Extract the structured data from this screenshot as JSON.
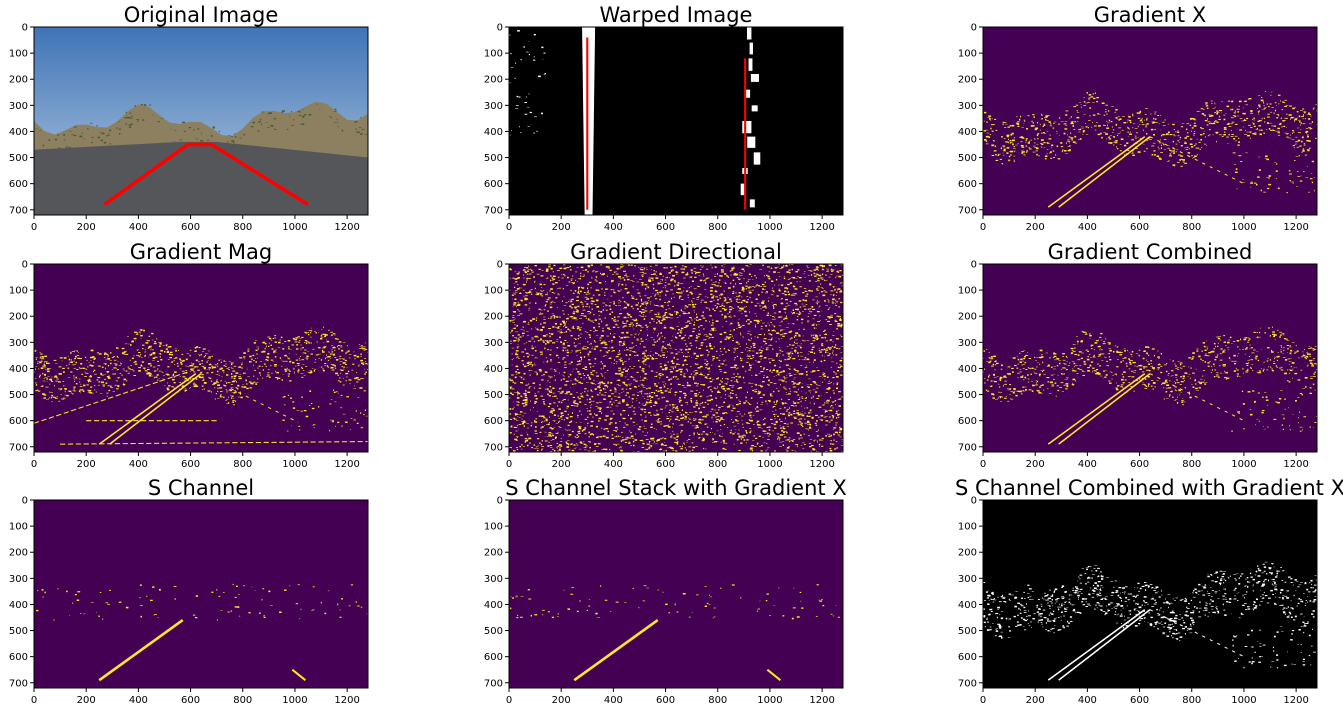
{
  "figure": {
    "colors": {
      "viridis_dark": "#440154",
      "viridis_yellow": "#fde725",
      "binary_black": "#000000",
      "binary_white": "#ffffff",
      "lane_line": "#ff0000",
      "sky_top": "#3f74b8",
      "sky_bottom": "#b9cde0",
      "hills": "#8d8060",
      "road": "#55565a"
    }
  },
  "chart_data": [
    {
      "type": "image",
      "title": "Original Image",
      "colormap": "rgb",
      "content": "photo-with-lane-polygon",
      "xlim": [
        0,
        1280
      ],
      "ylim": [
        720,
        0
      ],
      "xticks": [
        0,
        200,
        400,
        600,
        800,
        1000,
        1200
      ],
      "yticks": [
        0,
        100,
        200,
        300,
        400,
        500,
        600,
        700
      ],
      "lane_polygon": [
        [
          270,
          680
        ],
        [
          590,
          450
        ],
        [
          680,
          450
        ],
        [
          1050,
          680
        ]
      ]
    },
    {
      "type": "image",
      "title": "Warped Image",
      "colormap": "binary",
      "content": "warped",
      "xlim": [
        0,
        1280
      ],
      "ylim": [
        720,
        0
      ],
      "xticks": [
        0,
        200,
        400,
        600,
        800,
        1000,
        1200
      ],
      "yticks": [
        0,
        100,
        200,
        300,
        400,
        500,
        600,
        700
      ],
      "fit_lines": [
        [
          [
            300,
            40
          ],
          [
            300,
            700
          ]
        ],
        [
          [
            905,
            120
          ],
          [
            905,
            700
          ]
        ]
      ]
    },
    {
      "type": "image",
      "title": "Gradient X",
      "colormap": "viridis-binary",
      "content": "gradx",
      "xlim": [
        0,
        1280
      ],
      "ylim": [
        720,
        0
      ],
      "xticks": [
        0,
        200,
        400,
        600,
        800,
        1000,
        1200
      ],
      "yticks": [
        0,
        100,
        200,
        300,
        400,
        500,
        600,
        700
      ]
    },
    {
      "type": "image",
      "title": "Gradient Mag",
      "colormap": "viridis-binary",
      "content": "mag",
      "xlim": [
        0,
        1280
      ],
      "ylim": [
        720,
        0
      ],
      "xticks": [
        0,
        200,
        400,
        600,
        800,
        1000,
        1200
      ],
      "yticks": [
        0,
        100,
        200,
        300,
        400,
        500,
        600,
        700
      ]
    },
    {
      "type": "image",
      "title": "Gradient Directional",
      "colormap": "viridis-binary",
      "content": "dir",
      "xlim": [
        0,
        1280
      ],
      "ylim": [
        720,
        0
      ],
      "xticks": [
        0,
        200,
        400,
        600,
        800,
        1000,
        1200
      ],
      "yticks": [
        0,
        100,
        200,
        300,
        400,
        500,
        600,
        700
      ]
    },
    {
      "type": "image",
      "title": "Gradient Combined",
      "colormap": "viridis-binary",
      "content": "gradx",
      "xlim": [
        0,
        1280
      ],
      "ylim": [
        720,
        0
      ],
      "xticks": [
        0,
        200,
        400,
        600,
        800,
        1000,
        1200
      ],
      "yticks": [
        0,
        100,
        200,
        300,
        400,
        500,
        600,
        700
      ]
    },
    {
      "type": "image",
      "title": "S Channel",
      "colormap": "viridis-binary",
      "content": "schannel",
      "xlim": [
        0,
        1280
      ],
      "ylim": [
        720,
        0
      ],
      "xticks": [
        0,
        200,
        400,
        600,
        800,
        1000,
        1200
      ],
      "yticks": [
        0,
        100,
        200,
        300,
        400,
        500,
        600,
        700
      ]
    },
    {
      "type": "image",
      "title": "S Channel Stack with Gradient X",
      "colormap": "viridis-binary",
      "content": "schannel",
      "xlim": [
        0,
        1280
      ],
      "ylim": [
        720,
        0
      ],
      "xticks": [
        0,
        200,
        400,
        600,
        800,
        1000,
        1200
      ],
      "yticks": [
        0,
        100,
        200,
        300,
        400,
        500,
        600,
        700
      ]
    },
    {
      "type": "image",
      "title": "S Channel Combined with Gradient X",
      "colormap": "binary",
      "content": "gradx",
      "xlim": [
        0,
        1280
      ],
      "ylim": [
        720,
        0
      ],
      "xticks": [
        0,
        200,
        400,
        600,
        800,
        1000,
        1200
      ],
      "yticks": [
        0,
        100,
        200,
        300,
        400,
        500,
        600,
        700
      ]
    }
  ]
}
